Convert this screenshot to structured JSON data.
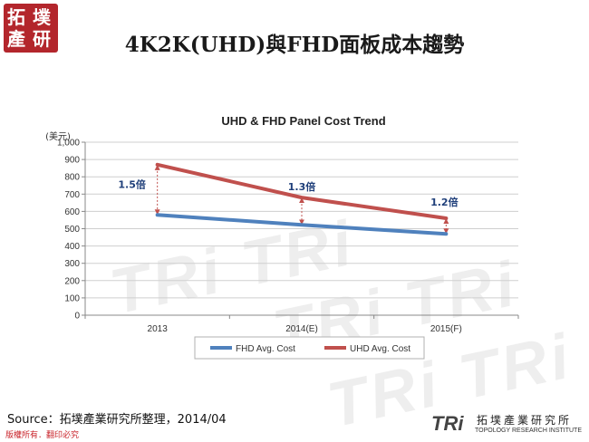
{
  "logo": {
    "line1": "拓",
    "line2": "墣",
    "line3": "產",
    "line4": "研",
    "color": "#b3262c"
  },
  "slide_title": "4K2K(UHD)與FHD面板成本趨勢",
  "watermark_text": "TRi TRi",
  "chart_data": {
    "type": "line",
    "title": "UHD & FHD Panel Cost Trend",
    "ylabel": "(美元)",
    "xlabel": "",
    "categories": [
      "2013",
      "2014(E)",
      "2015(F)"
    ],
    "ylim": [
      0,
      1000
    ],
    "yticks": [
      "0",
      "100",
      "200",
      "300",
      "400",
      "500",
      "600",
      "700",
      "800",
      "900",
      "1,000"
    ],
    "series": [
      {
        "name": "FHD Avg. Cost",
        "color": "#4f81bd",
        "values": [
          580,
          522,
          470
        ]
      },
      {
        "name": "UHD Avg. Cost",
        "color": "#c0504d",
        "values": [
          870,
          680,
          560
        ]
      }
    ],
    "annotations": [
      "1.5倍",
      "1.3倍",
      "1.2倍"
    ],
    "grid": true,
    "legend_position": "bottom"
  },
  "source_text": "Source：拓墣產業研究所整理，2014/04",
  "rights_text": "版權所有．翻印必究",
  "brand": {
    "tri": "TRi",
    "cn": "拓墣產業研究所",
    "en": "TOPOLOGY RESEARCH INSTITUTE"
  }
}
